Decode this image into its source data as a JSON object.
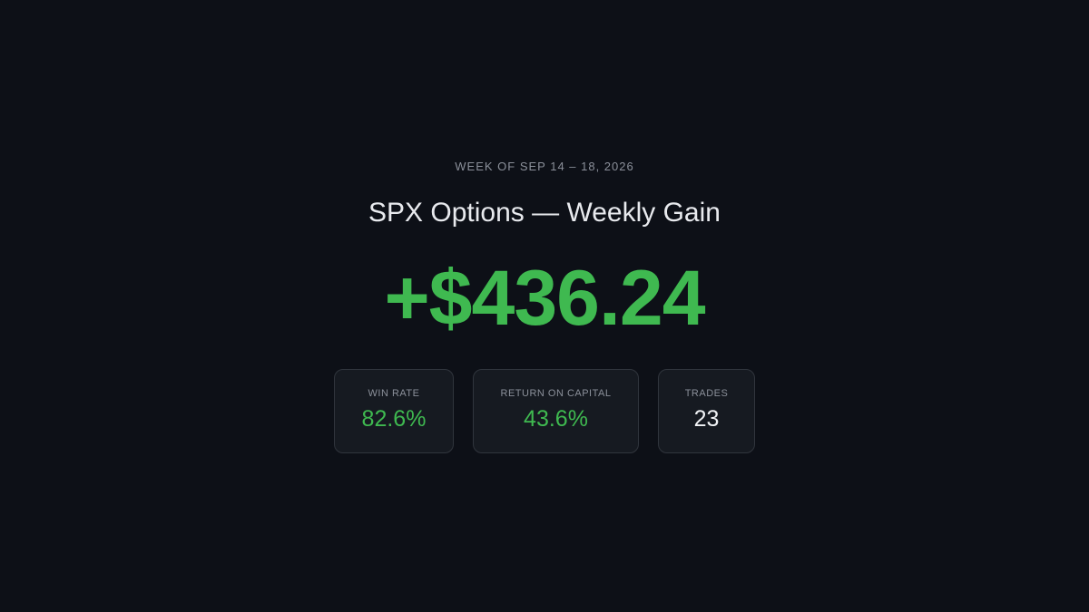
{
  "header": {
    "period": "WEEK OF SEP 14 – 18, 2026",
    "title": "SPX Options — Weekly Gain",
    "amount": "+$436.24"
  },
  "stats": [
    {
      "label": "WIN RATE",
      "value": "82.6%"
    },
    {
      "label": "RETURN ON CAPITAL",
      "value": "43.6%"
    },
    {
      "label": "TRADES",
      "value": "23"
    }
  ]
}
